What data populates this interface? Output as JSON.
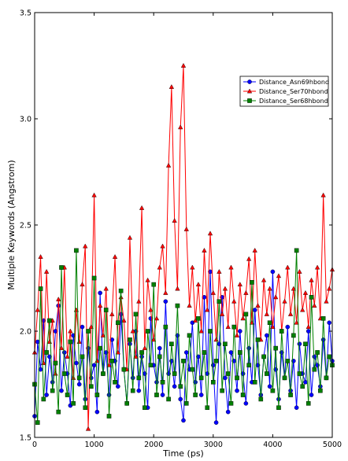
{
  "chart_data": {
    "type": "line",
    "xlabel": "Time (ps)",
    "ylabel": "Multiple Keywords (Angstrom)",
    "xlim": [
      0,
      5000
    ],
    "ylim": [
      1.5,
      3.5
    ],
    "xticks": [
      0,
      1000,
      2000,
      3000,
      4000,
      5000
    ],
    "yticks": [
      1.5,
      2.0,
      2.5,
      3.0,
      3.5
    ],
    "xtick_labels": [
      "0",
      "1000",
      "2000",
      "3000",
      "4000",
      "5000"
    ],
    "ytick_labels": [
      "1.5",
      "2.0",
      "2.5",
      "3.0",
      "3.5"
    ],
    "grid": false,
    "legend_position": "upper-right",
    "series": [
      {
        "name": "Distance_Asn69hbond",
        "color": "#0000ff",
        "marker": "circle",
        "x": [
          0,
          50,
          100,
          150,
          200,
          250,
          300,
          350,
          400,
          450,
          500,
          550,
          600,
          650,
          700,
          750,
          800,
          850,
          900,
          950,
          1000,
          1050,
          1100,
          1150,
          1200,
          1250,
          1300,
          1350,
          1400,
          1450,
          1500,
          1550,
          1600,
          1650,
          1700,
          1750,
          1800,
          1850,
          1900,
          1950,
          2000,
          2050,
          2100,
          2150,
          2200,
          2250,
          2300,
          2350,
          2400,
          2450,
          2500,
          2550,
          2600,
          2650,
          2700,
          2750,
          2800,
          2850,
          2900,
          2950,
          3000,
          3050,
          3100,
          3150,
          3200,
          3250,
          3300,
          3350,
          3400,
          3450,
          3500,
          3550,
          3600,
          3650,
          3700,
          3750,
          3800,
          3850,
          3900,
          3950,
          4000,
          4050,
          4100,
          4150,
          4200,
          4250,
          4300,
          4350,
          4400,
          4450,
          4500,
          4550,
          4600,
          4650,
          4700,
          4750,
          4800,
          4850,
          4900,
          4950,
          5000
        ],
        "y": [
          1.6,
          1.95,
          1.82,
          2.05,
          1.7,
          1.88,
          1.76,
          2.0,
          2.12,
          1.72,
          1.9,
          1.8,
          1.65,
          1.98,
          1.85,
          1.75,
          2.02,
          1.68,
          1.92,
          1.78,
          1.84,
          1.62,
          2.18,
          1.8,
          1.9,
          1.7,
          1.96,
          1.86,
          1.74,
          2.08,
          1.82,
          1.66,
          1.94,
          1.78,
          2.0,
          1.72,
          1.88,
          1.8,
          1.64,
          2.06,
          1.84,
          1.76,
          1.92,
          1.7,
          2.14,
          1.8,
          1.86,
          1.74,
          1.98,
          1.68,
          1.58,
          1.9,
          1.82,
          2.04,
          1.76,
          1.88,
          1.7,
          2.16,
          1.8,
          2.28,
          1.84,
          1.57,
          1.94,
          2.16,
          1.78,
          1.62,
          1.9,
          1.86,
          1.72,
          2.0,
          1.8,
          1.66,
          1.92,
          1.76,
          2.1,
          1.84,
          1.7,
          1.88,
          1.98,
          1.74,
          2.28,
          1.82,
          1.68,
          1.9,
          1.78,
          2.02,
          1.72,
          1.86,
          1.64,
          1.94,
          1.8,
          1.76,
          2.0,
          1.7,
          1.88,
          1.84,
          1.74,
          1.96,
          1.78,
          2.04,
          1.86
        ]
      },
      {
        "name": "Distance_Ser70hbond",
        "color": "#ff0000",
        "marker": "triangle",
        "x": [
          0,
          50,
          100,
          150,
          200,
          250,
          300,
          350,
          400,
          450,
          500,
          550,
          600,
          650,
          700,
          750,
          800,
          850,
          900,
          950,
          1000,
          1050,
          1100,
          1150,
          1200,
          1250,
          1300,
          1350,
          1400,
          1450,
          1500,
          1550,
          1600,
          1650,
          1700,
          1750,
          1800,
          1850,
          1900,
          1950,
          2000,
          2050,
          2100,
          2150,
          2200,
          2250,
          2300,
          2350,
          2400,
          2450,
          2500,
          2550,
          2600,
          2650,
          2700,
          2750,
          2800,
          2850,
          2900,
          2950,
          3000,
          3050,
          3100,
          3150,
          3200,
          3250,
          3300,
          3350,
          3400,
          3450,
          3500,
          3550,
          3600,
          3650,
          3700,
          3750,
          3800,
          3850,
          3900,
          3950,
          4000,
          4050,
          4100,
          4150,
          4200,
          4250,
          4300,
          4350,
          4400,
          4450,
          4500,
          4550,
          4600,
          4650,
          4700,
          4750,
          4800,
          4850,
          4900,
          4950,
          5000
        ],
        "y": [
          1.9,
          2.1,
          2.35,
          1.85,
          2.28,
          1.95,
          2.05,
          1.8,
          2.15,
          1.92,
          2.3,
          1.88,
          2.0,
          1.78,
          2.1,
          1.95,
          2.22,
          2.4,
          1.54,
          2.02,
          2.64,
          1.86,
          2.12,
          1.98,
          2.2,
          1.84,
          2.08,
          2.35,
          1.9,
          2.16,
          2.05,
          1.82,
          2.44,
          2.0,
          1.88,
          2.14,
          2.58,
          1.92,
          2.24,
          2.1,
          1.96,
          2.06,
          2.3,
          2.4,
          2.18,
          2.78,
          3.15,
          2.52,
          2.2,
          2.96,
          3.25,
          2.48,
          2.12,
          2.3,
          2.05,
          2.22,
          2.0,
          2.38,
          2.1,
          2.46,
          2.18,
          1.96,
          2.28,
          2.08,
          2.2,
          2.02,
          2.3,
          2.14,
          1.98,
          2.22,
          2.06,
          2.18,
          2.34,
          2.04,
          2.38,
          2.12,
          1.96,
          2.24,
          2.08,
          2.2,
          2.02,
          2.16,
          2.26,
          2.0,
          2.14,
          2.3,
          2.08,
          2.2,
          2.04,
          2.28,
          2.1,
          2.18,
          2.02,
          2.24,
          2.12,
          2.3,
          2.06,
          2.64,
          2.14,
          2.2,
          2.29
        ]
      },
      {
        "name": "Distance_Ser68hbond",
        "color": "#008000",
        "marker": "square",
        "x": [
          0,
          50,
          100,
          150,
          200,
          250,
          300,
          350,
          400,
          450,
          500,
          550,
          600,
          650,
          700,
          750,
          800,
          850,
          900,
          950,
          1000,
          1050,
          1100,
          1150,
          1200,
          1250,
          1300,
          1350,
          1400,
          1450,
          1500,
          1550,
          1600,
          1650,
          1700,
          1750,
          1800,
          1850,
          1900,
          1950,
          2000,
          2050,
          2100,
          2150,
          2200,
          2250,
          2300,
          2350,
          2400,
          2450,
          2500,
          2550,
          2600,
          2650,
          2700,
          2750,
          2800,
          2850,
          2900,
          2950,
          3000,
          3050,
          3100,
          3150,
          3200,
          3250,
          3300,
          3350,
          3400,
          3450,
          3500,
          3550,
          3600,
          3650,
          3700,
          3750,
          3800,
          3850,
          3900,
          3950,
          4000,
          4050,
          4100,
          4150,
          4200,
          4250,
          4300,
          4350,
          4400,
          4450,
          4500,
          4550,
          4600,
          4650,
          4700,
          4750,
          4800,
          4850,
          4900,
          4950,
          5000
        ],
        "y": [
          1.75,
          1.57,
          2.2,
          1.68,
          1.9,
          2.05,
          1.72,
          1.85,
          1.62,
          2.3,
          1.8,
          1.7,
          1.95,
          1.66,
          2.38,
          1.78,
          1.88,
          1.64,
          2.0,
          1.74,
          2.25,
          1.7,
          1.92,
          1.8,
          2.1,
          1.6,
          1.86,
          1.76,
          2.04,
          2.19,
          1.82,
          1.66,
          1.96,
          1.72,
          2.08,
          1.78,
          1.9,
          1.64,
          2.0,
          1.84,
          2.22,
          1.7,
          1.88,
          1.76,
          2.02,
          1.68,
          1.94,
          1.8,
          2.12,
          1.74,
          1.86,
          1.66,
          1.98,
          1.82,
          1.7,
          2.06,
          1.78,
          1.9,
          1.64,
          2.0,
          1.76,
          1.86,
          2.14,
          1.72,
          1.94,
          1.8,
          1.66,
          2.02,
          1.78,
          1.9,
          1.7,
          2.08,
          1.84,
          2.23,
          1.76,
          1.96,
          1.68,
          1.88,
          1.8,
          2.04,
          1.72,
          1.92,
          1.64,
          2.0,
          1.78,
          1.86,
          1.7,
          1.98,
          2.38,
          1.8,
          1.74,
          1.94,
          1.66,
          2.16,
          1.82,
          1.9,
          1.72,
          2.06,
          1.78,
          1.88,
          1.84
        ]
      }
    ]
  }
}
